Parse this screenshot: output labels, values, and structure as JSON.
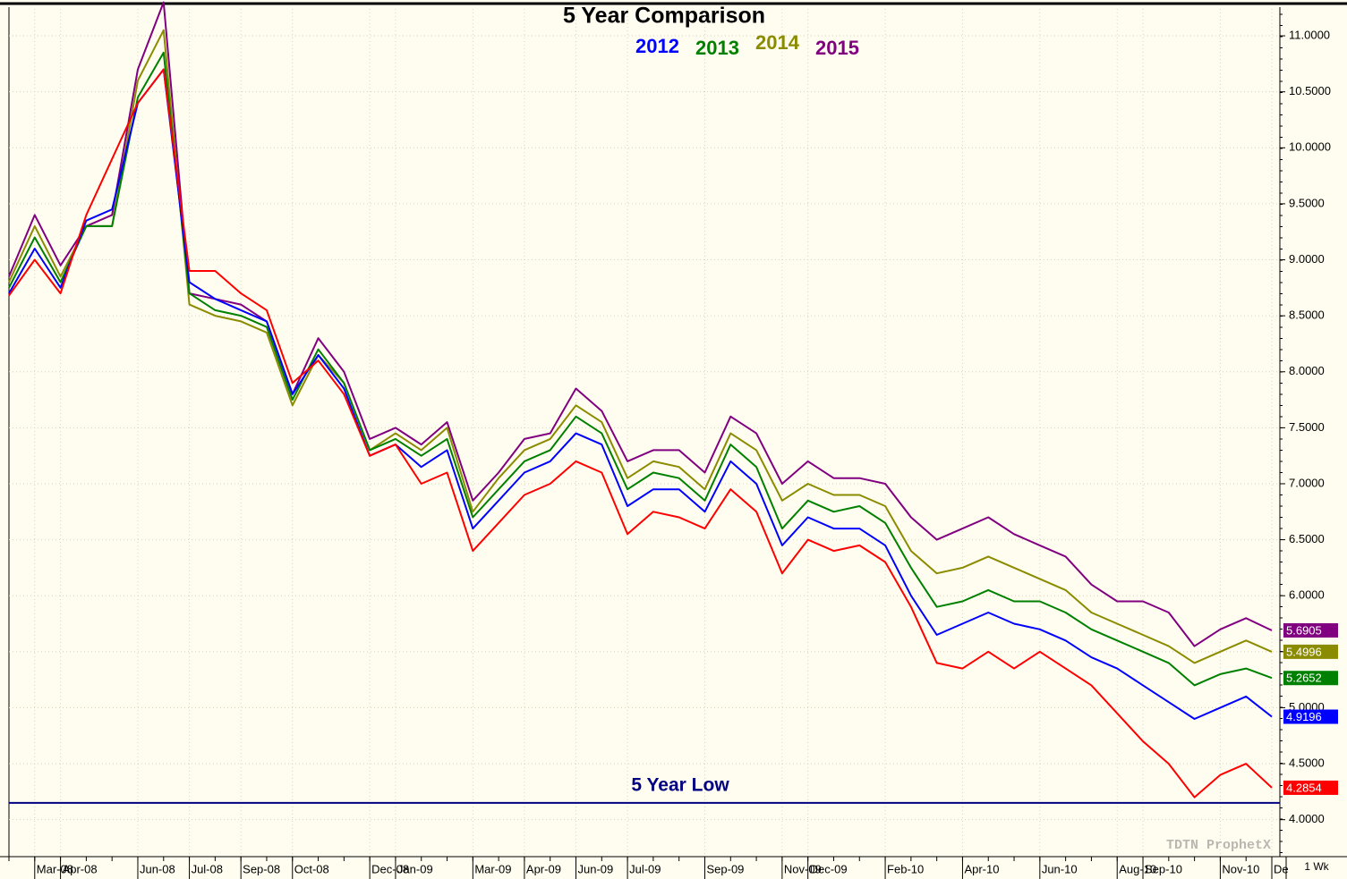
{
  "chart_data": {
    "type": "line",
    "title": "5 Year Comparison",
    "categories": [
      null,
      "Mar-08",
      "Apr-08",
      null,
      null,
      "Jun-08",
      null,
      "Jul-08",
      null,
      "Sep-08",
      null,
      "Oct-08",
      null,
      null,
      "Dec-08",
      "Jan-09",
      null,
      null,
      "Mar-09",
      null,
      "Apr-09",
      null,
      "Jun-09",
      null,
      "Jul-09",
      null,
      null,
      "Sep-09",
      null,
      null,
      "Nov-09",
      "Dec-09",
      null,
      null,
      "Feb-10",
      null,
      null,
      "Apr-10",
      null,
      null,
      "Jun-10",
      null,
      null,
      "Aug-10",
      "Sep-10",
      null,
      null,
      "Nov-10",
      null,
      "De"
    ],
    "series": [
      {
        "color": "#ff0000",
        "values": [
          8.68,
          9.0,
          8.7,
          9.4,
          9.9,
          10.4,
          10.7,
          8.9,
          8.9,
          8.7,
          8.55,
          7.9,
          8.1,
          7.8,
          7.25,
          7.35,
          7.0,
          7.1,
          6.4,
          6.65,
          6.9,
          7.0,
          7.2,
          7.1,
          6.55,
          6.75,
          6.7,
          6.6,
          6.95,
          6.75,
          6.2,
          6.5,
          6.4,
          6.45,
          6.3,
          5.9,
          5.4,
          5.35,
          5.5,
          5.35,
          5.5,
          5.35,
          5.2,
          4.95,
          4.7,
          4.5,
          4.2,
          4.4,
          4.5,
          4.2854
        ]
      },
      {
        "name": "2012",
        "color": "#0000ff",
        "values": [
          8.7,
          9.1,
          8.75,
          9.35,
          9.45,
          10.4,
          10.7,
          8.8,
          8.65,
          8.55,
          8.45,
          7.8,
          8.15,
          7.85,
          7.25,
          7.35,
          7.15,
          7.3,
          6.6,
          6.85,
          7.1,
          7.2,
          7.45,
          7.35,
          6.8,
          6.95,
          6.95,
          6.75,
          7.2,
          7.0,
          6.45,
          6.7,
          6.6,
          6.6,
          6.45,
          6.0,
          5.65,
          5.75,
          5.85,
          5.75,
          5.7,
          5.6,
          5.45,
          5.35,
          5.2,
          5.05,
          4.9,
          5.0,
          5.1,
          4.9196
        ]
      },
      {
        "name": "2013",
        "color": "#008000",
        "values": [
          8.75,
          9.2,
          8.8,
          9.3,
          9.3,
          10.45,
          10.85,
          8.7,
          8.55,
          8.5,
          8.4,
          7.75,
          8.2,
          7.9,
          7.3,
          7.4,
          7.25,
          7.4,
          6.7,
          6.95,
          7.2,
          7.3,
          7.6,
          7.45,
          6.95,
          7.1,
          7.05,
          6.85,
          7.35,
          7.15,
          6.6,
          6.85,
          6.75,
          6.8,
          6.65,
          6.25,
          5.9,
          5.95,
          6.05,
          5.95,
          5.95,
          5.85,
          5.7,
          5.6,
          5.5,
          5.4,
          5.2,
          5.3,
          5.35,
          5.2652
        ]
      },
      {
        "name": "2014",
        "color": "#8b8b00",
        "values": [
          8.8,
          9.3,
          8.85,
          9.3,
          9.3,
          10.6,
          11.05,
          8.6,
          8.5,
          8.45,
          8.35,
          7.7,
          8.15,
          7.9,
          7.3,
          7.45,
          7.3,
          7.5,
          6.75,
          7.05,
          7.3,
          7.4,
          7.7,
          7.55,
          7.05,
          7.2,
          7.15,
          6.95,
          7.45,
          7.3,
          6.85,
          7.0,
          6.9,
          6.9,
          6.8,
          6.4,
          6.2,
          6.25,
          6.35,
          6.25,
          6.15,
          6.05,
          5.85,
          5.75,
          5.65,
          5.55,
          5.4,
          5.5,
          5.6,
          5.4996
        ]
      },
      {
        "name": "2015",
        "color": "#800080",
        "values": [
          8.85,
          9.4,
          8.95,
          9.3,
          9.4,
          10.7,
          11.3,
          8.7,
          8.65,
          8.6,
          8.45,
          7.8,
          8.3,
          8.0,
          7.4,
          7.5,
          7.35,
          7.55,
          6.85,
          7.1,
          7.4,
          7.45,
          7.85,
          7.65,
          7.2,
          7.3,
          7.3,
          7.1,
          7.6,
          7.45,
          7.0,
          7.2,
          7.05,
          7.05,
          7.0,
          6.7,
          6.5,
          6.6,
          6.7,
          6.55,
          6.45,
          6.35,
          6.1,
          5.95,
          5.95,
          5.85,
          5.55,
          5.7,
          5.8,
          5.6905
        ]
      }
    ],
    "ylim": [
      3.67,
      11.24
    ],
    "yticks": [
      {
        "value": 4,
        "label": "4.0000"
      },
      {
        "value": 4.5,
        "label": "4.5000"
      },
      {
        "value": 5,
        "label": "5.0000"
      },
      {
        "value": 5.5,
        "label": "5.5000"
      },
      {
        "value": 6,
        "label": "6.0000"
      },
      {
        "value": 6.5,
        "label": "6.5000"
      },
      {
        "value": 7,
        "label": "7.0000"
      },
      {
        "value": 7.5,
        "label": "7.5000"
      },
      {
        "value": 8,
        "label": "8.0000"
      },
      {
        "value": 8.5,
        "label": "8.5000"
      },
      {
        "value": 9,
        "label": "9.0000"
      },
      {
        "value": 9.5,
        "label": "9.5000"
      },
      {
        "value": 10,
        "label": "10.0000"
      },
      {
        "value": 10.5,
        "label": "10.5000"
      },
      {
        "value": 11,
        "label": "11.0000"
      }
    ],
    "grid": true,
    "five_year_low": {
      "label": "5 Year Low",
      "value": 4.15,
      "color": "#000080"
    },
    "watermark": "TDTN ProphetX",
    "interval": "1 Wk"
  }
}
